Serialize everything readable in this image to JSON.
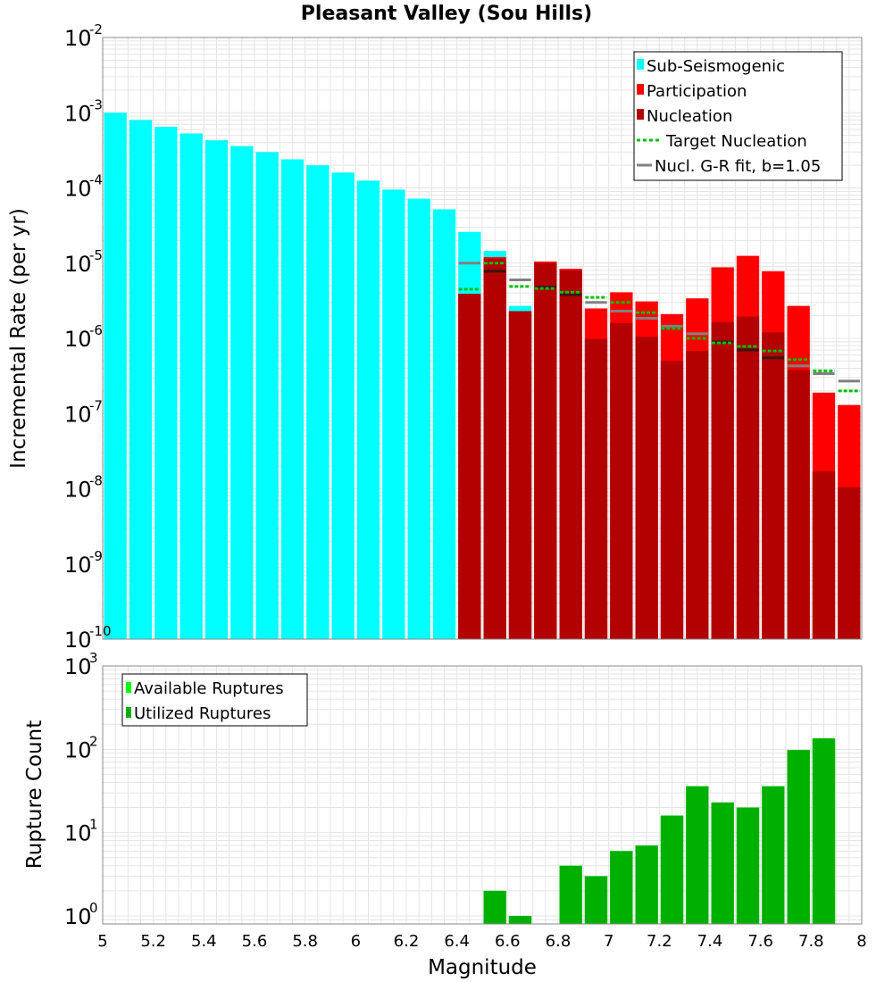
{
  "colors": {
    "sub_seismogenic": "#00ffff",
    "participation": "#ff0000",
    "nucleation": "#b30000",
    "target_nucleation": "#00c000",
    "gr_fit": "#808080",
    "available_ruptures": "#00ff00",
    "utilized_ruptures": "#00b000",
    "grid": "#e4e4e4"
  },
  "chart_data": [
    {
      "type": "bar",
      "title": "Pleasant Valley (Sou Hills)",
      "xlabel": "",
      "ylabel": "Incremental Rate (per yr)",
      "xlim": [
        5,
        8
      ],
      "ylim": [
        1e-10,
        0.01
      ],
      "yscale": "log",
      "grid": true,
      "legend_position": "top-right",
      "ytick_exponents": [
        "-10",
        "-9",
        "-8",
        "-7",
        "-6",
        "-5",
        "-4",
        "-3",
        "-2"
      ],
      "ytick_base": "10",
      "x": [
        5.05,
        5.15,
        5.25,
        5.35,
        5.45,
        5.55,
        5.65,
        5.75,
        5.85,
        5.95,
        6.05,
        6.15,
        6.25,
        6.35,
        6.45,
        6.55,
        6.65,
        6.75,
        6.85,
        6.95,
        7.05,
        7.15,
        7.25,
        7.35,
        7.45,
        7.55,
        7.65,
        7.75,
        7.85,
        7.95
      ],
      "series": [
        {
          "name": "Sub-Seismogenic",
          "kind": "bar",
          "values": [
            0.001,
            0.0008,
            0.00065,
            0.00053,
            0.00043,
            0.00036,
            0.0003,
            0.00024,
            0.0002,
            0.00016,
            0.000125,
            9.5e-05,
            7.2e-05,
            5.2e-05,
            2.6e-05,
            1.45e-05,
            2.7e-06,
            null,
            null,
            null,
            null,
            null,
            null,
            null,
            null,
            null,
            null,
            null,
            null,
            null
          ]
        },
        {
          "name": "Participation",
          "kind": "bar",
          "values": [
            null,
            null,
            null,
            null,
            null,
            null,
            null,
            null,
            null,
            null,
            null,
            null,
            null,
            null,
            3.9e-06,
            1.2e-05,
            2.3e-06,
            1.05e-05,
            8.4e-06,
            2.5e-06,
            4.1e-06,
            3.1e-06,
            2.1e-06,
            3.4e-06,
            8.8e-06,
            1.25e-05,
            7.8e-06,
            2.7e-06,
            1.9e-07,
            1.3e-07
          ]
        },
        {
          "name": "Nucleation",
          "kind": "bar",
          "values": [
            null,
            null,
            null,
            null,
            null,
            null,
            null,
            null,
            null,
            null,
            null,
            null,
            null,
            null,
            3.9e-06,
            1.15e-05,
            2.3e-06,
            1e-05,
            8e-06,
            9.8e-07,
            1.6e-06,
            1.05e-06,
            5e-07,
            6.8e-07,
            1.65e-06,
            1.95e-06,
            1.2e-06,
            3.8e-07,
            1.7e-08,
            1.05e-08
          ]
        },
        {
          "name": "Target Nucleation",
          "kind": "dash",
          "values": [
            null,
            null,
            null,
            null,
            null,
            null,
            null,
            null,
            null,
            null,
            null,
            null,
            null,
            null,
            4.5e-06,
            1e-05,
            4.9e-06,
            4.6e-06,
            4.1e-06,
            3.5e-06,
            3e-06,
            2.2e-06,
            1.35e-06,
            1e-06,
            8.7e-07,
            7.8e-07,
            6.8e-07,
            5.2e-07,
            3.7e-07,
            2e-07
          ]
        },
        {
          "name": "Nucl. G-R fit, b=1.05",
          "kind": "dash",
          "values": [
            null,
            null,
            null,
            null,
            null,
            null,
            null,
            null,
            null,
            null,
            null,
            null,
            null,
            null,
            1e-05,
            7.8e-06,
            6e-06,
            4.8e-06,
            3.8e-06,
            3e-06,
            2.3e-06,
            1.85e-06,
            1.45e-06,
            1.15e-06,
            9e-07,
            7e-07,
            5.5e-07,
            4.3e-07,
            3.4e-07,
            2.7e-07
          ]
        }
      ],
      "legend": [
        "Sub-Seismogenic",
        "Participation",
        "Nucleation",
        "Target Nucleation",
        "Nucl. G-R fit, b=1.05"
      ]
    },
    {
      "type": "bar",
      "title": "",
      "xlabel": "Magnitude",
      "ylabel": "Rupture Count",
      "xlim": [
        5,
        8
      ],
      "ylim": [
        0.8,
        1000
      ],
      "yscale": "log",
      "grid": true,
      "legend_position": "top-left",
      "ytick_exponents": [
        "0",
        "1",
        "2",
        "3"
      ],
      "ytick_base": "10",
      "xtick_labels": [
        "5",
        "5.2",
        "5.4",
        "5.6",
        "5.8",
        "6",
        "6.2",
        "6.4",
        "6.6",
        "6.8",
        "7",
        "7.2",
        "7.4",
        "7.6",
        "7.8",
        "8"
      ],
      "x": [
        6.55,
        6.65,
        6.85,
        6.95,
        7.05,
        7.15,
        7.25,
        7.35,
        7.45,
        7.55,
        7.65,
        7.75,
        7.85
      ],
      "series": [
        {
          "name": "Available Ruptures",
          "kind": "bar",
          "values": [
            2,
            1,
            4,
            3,
            6,
            7,
            16,
            36,
            23,
            20,
            36,
            98,
            135
          ]
        },
        {
          "name": "Utilized Ruptures",
          "kind": "bar",
          "values": [
            2,
            1,
            4,
            3,
            6,
            7,
            16,
            36,
            23,
            20,
            36,
            98,
            135
          ]
        }
      ],
      "legend": [
        "Available Ruptures",
        "Utilized Ruptures"
      ]
    }
  ]
}
